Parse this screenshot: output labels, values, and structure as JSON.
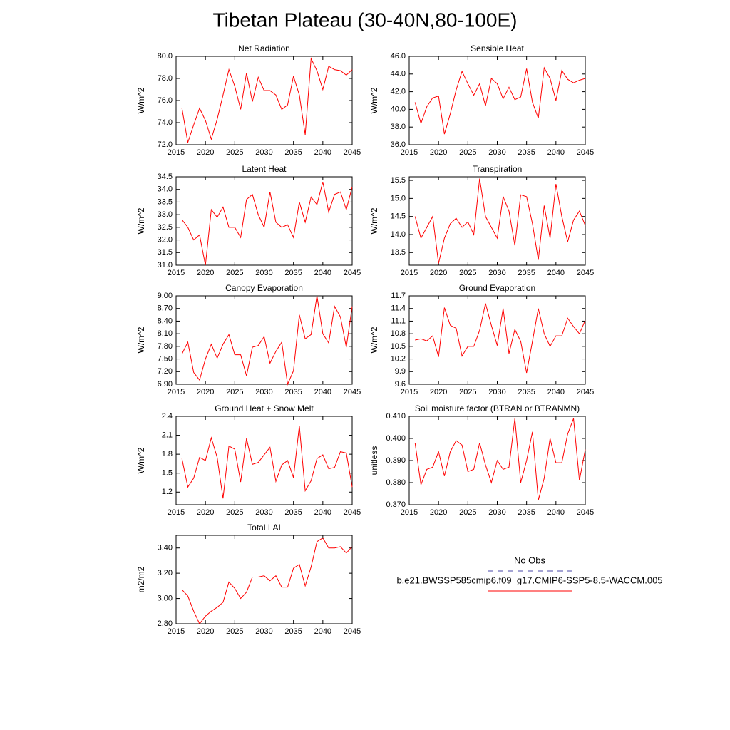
{
  "title": "Tibetan Plateau (30-40N,80-100E)",
  "legend": [
    {
      "name": "No Obs",
      "color": "#4a4aa8",
      "dash": true
    },
    {
      "name": "b.e21.BWSSP585cmip6.f09_g17.CMIP6-SSP5-8.5-WACCM.005",
      "color": "#ff0000",
      "dash": false
    }
  ],
  "chart_data": [
    {
      "type": "line",
      "title": "Net Radiation",
      "ylabel": "W/m^2",
      "color": "#ff0000",
      "x": [
        2016,
        2017,
        2018,
        2019,
        2020,
        2021,
        2022,
        2023,
        2024,
        2025,
        2026,
        2027,
        2028,
        2029,
        2030,
        2031,
        2032,
        2033,
        2034,
        2035,
        2036,
        2037,
        2038,
        2039,
        2040,
        2041,
        2042,
        2043,
        2044,
        2045
      ],
      "values": [
        75.3,
        72.2,
        73.8,
        75.3,
        74.2,
        72.5,
        74.3,
        76.5,
        78.8,
        77.3,
        75.2,
        78.5,
        75.9,
        78.1,
        76.9,
        76.9,
        76.5,
        75.2,
        75.6,
        78.2,
        76.5,
        72.9,
        79.8,
        78.7,
        77.0,
        79.1,
        78.8,
        78.7,
        78.3,
        78.8
      ],
      "xlim": [
        2015,
        2045
      ],
      "xticks": [
        2015,
        2020,
        2025,
        2030,
        2035,
        2040,
        2045
      ],
      "ylim": [
        72,
        80
      ],
      "yticks": [
        {
          "value": 72,
          "label": "72.0"
        },
        {
          "value": 74,
          "label": "74.0"
        },
        {
          "value": 76,
          "label": "76.0"
        },
        {
          "value": 78,
          "label": "78.0"
        },
        {
          "value": 80,
          "label": "80.0"
        }
      ]
    },
    {
      "type": "line",
      "title": "Sensible Heat",
      "ylabel": "W/m^2",
      "color": "#ff0000",
      "x": [
        2016,
        2017,
        2018,
        2019,
        2020,
        2021,
        2022,
        2023,
        2024,
        2025,
        2026,
        2027,
        2028,
        2029,
        2030,
        2031,
        2032,
        2033,
        2034,
        2035,
        2036,
        2037,
        2038,
        2039,
        2040,
        2041,
        2042,
        2043,
        2044,
        2045
      ],
      "values": [
        40.8,
        38.4,
        40.3,
        41.3,
        41.5,
        37.2,
        39.5,
        42.2,
        44.3,
        42.9,
        41.6,
        42.9,
        40.4,
        43.5,
        42.9,
        41.2,
        42.5,
        41.1,
        41.4,
        44.6,
        40.8,
        39.0,
        44.7,
        43.5,
        41.0,
        44.4,
        43.4,
        43.0,
        43.3,
        43.5
      ],
      "xlim": [
        2015,
        2045
      ],
      "xticks": [
        2015,
        2020,
        2025,
        2030,
        2035,
        2040,
        2045
      ],
      "ylim": [
        36,
        46
      ],
      "yticks": [
        {
          "value": 36,
          "label": "36.0"
        },
        {
          "value": 38,
          "label": "38.0"
        },
        {
          "value": 40,
          "label": "40.0"
        },
        {
          "value": 42,
          "label": "42.0"
        },
        {
          "value": 44,
          "label": "44.0"
        },
        {
          "value": 46,
          "label": "46.0"
        }
      ]
    },
    {
      "type": "line",
      "title": "Latent Heat",
      "ylabel": "W/m^2",
      "color": "#ff0000",
      "x": [
        2016,
        2017,
        2018,
        2019,
        2020,
        2021,
        2022,
        2023,
        2024,
        2025,
        2026,
        2027,
        2028,
        2029,
        2030,
        2031,
        2032,
        2033,
        2034,
        2035,
        2036,
        2037,
        2038,
        2039,
        2040,
        2041,
        2042,
        2043,
        2044,
        2045
      ],
      "values": [
        32.8,
        32.5,
        32.0,
        32.2,
        31.0,
        33.2,
        32.9,
        33.3,
        32.5,
        32.5,
        32.1,
        33.6,
        33.8,
        33.0,
        32.5,
        33.9,
        32.7,
        32.5,
        32.6,
        32.1,
        33.5,
        32.7,
        33.7,
        33.4,
        34.3,
        33.1,
        33.8,
        33.9,
        33.2,
        34.1
      ],
      "xlim": [
        2015,
        2045
      ],
      "xticks": [
        2015,
        2020,
        2025,
        2030,
        2035,
        2040,
        2045
      ],
      "ylim": [
        31,
        34.5
      ],
      "yticks": [
        {
          "value": 31,
          "label": "31.0"
        },
        31.5,
        {
          "value": 32,
          "label": "32.0"
        },
        32.5,
        {
          "value": 33,
          "label": "33.0"
        },
        33.5,
        {
          "value": 34,
          "label": "34.0"
        },
        34.5
      ]
    },
    {
      "type": "line",
      "title": "Transpiration",
      "ylabel": "W/m^2",
      "color": "#ff0000",
      "x": [
        2016,
        2017,
        2018,
        2019,
        2020,
        2021,
        2022,
        2023,
        2024,
        2025,
        2026,
        2027,
        2028,
        2029,
        2030,
        2031,
        2032,
        2033,
        2034,
        2035,
        2036,
        2037,
        2038,
        2039,
        2040,
        2041,
        2042,
        2043,
        2044,
        2045
      ],
      "values": [
        14.5,
        13.9,
        14.2,
        14.5,
        13.2,
        13.9,
        14.3,
        14.45,
        14.2,
        14.35,
        14.0,
        15.55,
        14.5,
        14.2,
        13.9,
        15.05,
        14.65,
        13.7,
        15.1,
        15.05,
        14.3,
        13.3,
        14.8,
        13.9,
        15.4,
        14.5,
        13.8,
        14.4,
        14.65,
        14.25
      ],
      "xlim": [
        2015,
        2045
      ],
      "xticks": [
        2015,
        2020,
        2025,
        2030,
        2035,
        2040,
        2045
      ],
      "ylim": [
        13.15,
        15.6
      ],
      "yticks": [
        13.5,
        {
          "value": 14,
          "label": "14.0"
        },
        14.5,
        {
          "value": 15,
          "label": "15.0"
        },
        15.5
      ]
    },
    {
      "type": "line",
      "title": "Canopy Evaporation",
      "ylabel": "W/m^2",
      "color": "#ff0000",
      "x": [
        2016,
        2017,
        2018,
        2019,
        2020,
        2021,
        2022,
        2023,
        2024,
        2025,
        2026,
        2027,
        2028,
        2029,
        2030,
        2031,
        2032,
        2033,
        2034,
        2035,
        2036,
        2037,
        2038,
        2039,
        2040,
        2041,
        2042,
        2043,
        2044,
        2045
      ],
      "values": [
        7.62,
        7.9,
        7.18,
        7.0,
        7.5,
        7.85,
        7.52,
        7.85,
        8.08,
        7.6,
        7.6,
        7.1,
        7.78,
        7.82,
        8.03,
        7.4,
        7.68,
        7.9,
        6.9,
        7.22,
        8.55,
        7.98,
        8.08,
        9.0,
        8.1,
        7.88,
        8.75,
        8.5,
        7.78,
        8.75
      ],
      "xlim": [
        2015,
        2045
      ],
      "xticks": [
        2015,
        2020,
        2025,
        2030,
        2035,
        2040,
        2045
      ],
      "ylim": [
        6.9,
        9.0
      ],
      "yticks": [
        {
          "value": 6.9,
          "label": "6.90"
        },
        {
          "value": 7.2,
          "label": "7.20"
        },
        {
          "value": 7.5,
          "label": "7.50"
        },
        {
          "value": 7.8,
          "label": "7.80"
        },
        {
          "value": 8.1,
          "label": "8.10"
        },
        {
          "value": 8.4,
          "label": "8.40"
        },
        {
          "value": 8.7,
          "label": "8.70"
        },
        {
          "value": 9.0,
          "label": "9.00"
        }
      ]
    },
    {
      "type": "line",
      "title": "Ground Evaporation",
      "ylabel": "W/m^2",
      "color": "#ff0000",
      "x": [
        2016,
        2017,
        2018,
        2019,
        2020,
        2021,
        2022,
        2023,
        2024,
        2025,
        2026,
        2027,
        2028,
        2029,
        2030,
        2031,
        2032,
        2033,
        2034,
        2035,
        2036,
        2037,
        2038,
        2039,
        2040,
        2041,
        2042,
        2043,
        2044,
        2045
      ],
      "values": [
        10.65,
        10.68,
        10.63,
        10.75,
        10.25,
        11.42,
        11.0,
        10.93,
        10.27,
        10.5,
        10.5,
        10.88,
        11.52,
        11.0,
        10.52,
        11.4,
        10.33,
        10.9,
        10.62,
        9.87,
        10.62,
        11.4,
        10.8,
        10.5,
        10.75,
        10.75,
        11.17,
        10.97,
        10.8,
        11.12
      ],
      "xlim": [
        2015,
        2045
      ],
      "xticks": [
        2015,
        2020,
        2025,
        2030,
        2035,
        2040,
        2045
      ],
      "ylim": [
        9.6,
        11.7
      ],
      "yticks": [
        9.6,
        9.9,
        10.2,
        10.5,
        10.8,
        11.1,
        11.4,
        11.7
      ]
    },
    {
      "type": "line",
      "title": "Ground Heat + Snow Melt",
      "ylabel": "W/m^2",
      "color": "#ff0000",
      "x": [
        2016,
        2017,
        2018,
        2019,
        2020,
        2021,
        2022,
        2023,
        2024,
        2025,
        2026,
        2027,
        2028,
        2029,
        2030,
        2031,
        2032,
        2033,
        2034,
        2035,
        2036,
        2037,
        2038,
        2039,
        2040,
        2041,
        2042,
        2043,
        2044,
        2045
      ],
      "values": [
        1.73,
        1.28,
        1.42,
        1.75,
        1.7,
        2.06,
        1.75,
        1.1,
        1.93,
        1.88,
        1.36,
        2.05,
        1.64,
        1.67,
        1.79,
        1.91,
        1.37,
        1.63,
        1.7,
        1.43,
        2.25,
        1.22,
        1.38,
        1.73,
        1.79,
        1.57,
        1.59,
        1.84,
        1.82,
        1.28
      ],
      "xlim": [
        2015,
        2045
      ],
      "xticks": [
        2015,
        2020,
        2025,
        2030,
        2035,
        2040,
        2045
      ],
      "ylim": [
        1.0,
        2.4
      ],
      "yticks": [
        1.2,
        1.5,
        1.8,
        2.1,
        2.4
      ]
    },
    {
      "type": "line",
      "title": "Soil moisture factor (BTRAN or BTRANMN)",
      "ylabel": "unitless",
      "color": "#ff0000",
      "x": [
        2016,
        2017,
        2018,
        2019,
        2020,
        2021,
        2022,
        2023,
        2024,
        2025,
        2026,
        2027,
        2028,
        2029,
        2030,
        2031,
        2032,
        2033,
        2034,
        2035,
        2036,
        2037,
        2038,
        2039,
        2040,
        2041,
        2042,
        2043,
        2044,
        2045
      ],
      "values": [
        0.398,
        0.379,
        0.386,
        0.387,
        0.394,
        0.383,
        0.394,
        0.399,
        0.397,
        0.385,
        0.386,
        0.398,
        0.388,
        0.38,
        0.39,
        0.386,
        0.387,
        0.409,
        0.38,
        0.39,
        0.403,
        0.372,
        0.382,
        0.4,
        0.389,
        0.389,
        0.402,
        0.409,
        0.381,
        0.395
      ],
      "xlim": [
        2015,
        2045
      ],
      "xticks": [
        2015,
        2020,
        2025,
        2030,
        2035,
        2040,
        2045
      ],
      "ylim": [
        0.37,
        0.41
      ],
      "yticks": [
        {
          "value": 0.37,
          "label": "0.370"
        },
        {
          "value": 0.38,
          "label": "0.380"
        },
        {
          "value": 0.39,
          "label": "0.390"
        },
        {
          "value": 0.4,
          "label": "0.400"
        },
        {
          "value": 0.41,
          "label": "0.410"
        }
      ]
    },
    {
      "type": "line",
      "title": "Total LAI",
      "ylabel": "m2/m2",
      "color": "#ff0000",
      "x": [
        2016,
        2017,
        2018,
        2019,
        2020,
        2021,
        2022,
        2023,
        2024,
        2025,
        2026,
        2027,
        2028,
        2029,
        2030,
        2031,
        2032,
        2033,
        2034,
        2035,
        2036,
        2037,
        2038,
        2039,
        2040,
        2041,
        2042,
        2043,
        2044,
        2045
      ],
      "values": [
        3.07,
        3.02,
        2.9,
        2.8,
        2.86,
        2.9,
        2.93,
        2.97,
        3.13,
        3.08,
        3.0,
        3.05,
        3.17,
        3.17,
        3.18,
        3.14,
        3.18,
        3.09,
        3.09,
        3.24,
        3.27,
        3.1,
        3.25,
        3.45,
        3.48,
        3.4,
        3.4,
        3.41,
        3.36,
        3.41
      ],
      "xlim": [
        2015,
        2045
      ],
      "xticks": [
        2015,
        2020,
        2025,
        2030,
        2035,
        2040,
        2045
      ],
      "ylim": [
        2.8,
        3.5
      ],
      "yticks": [
        {
          "value": 2.8,
          "label": "2.80"
        },
        {
          "value": 3.0,
          "label": "3.00"
        },
        {
          "value": 3.2,
          "label": "3.20"
        },
        {
          "value": 3.4,
          "label": "3.40"
        }
      ]
    }
  ]
}
